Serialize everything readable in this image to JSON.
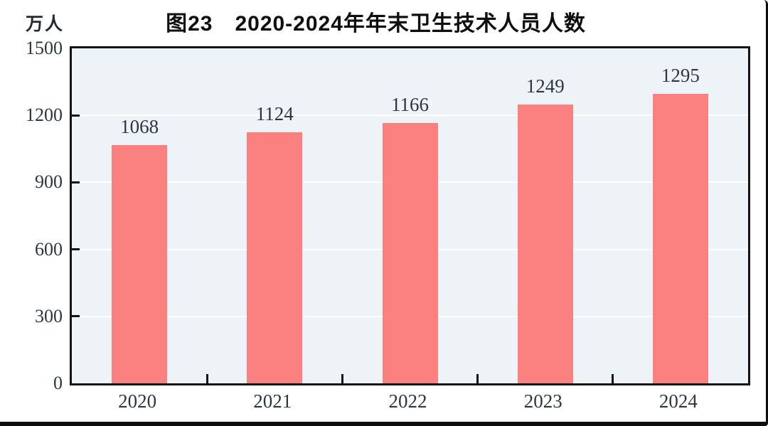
{
  "figure": {
    "title": "图23　2020-2024年年末卫生技术人员人数",
    "unit_label": "万人"
  },
  "chart_data": {
    "type": "bar",
    "title": "图23　2020-2024年年末卫生技术人员人数",
    "unit": "万人",
    "categories": [
      "2020",
      "2021",
      "2022",
      "2023",
      "2024"
    ],
    "values": [
      1068,
      1124,
      1166,
      1249,
      1295
    ],
    "xlabel": "",
    "ylabel": "万人",
    "ylim": [
      0,
      1500
    ],
    "yticks": [
      0,
      300,
      600,
      900,
      1200,
      1500
    ],
    "grid": "horizontal-white",
    "legend_position": "none",
    "colors": {
      "bar": "#fb8080",
      "plot_background": "#edf3f7",
      "gridline": "#ffffff",
      "axis": "#141414",
      "label_text": "#2c3642",
      "title_text": "#0f0f0f"
    }
  }
}
